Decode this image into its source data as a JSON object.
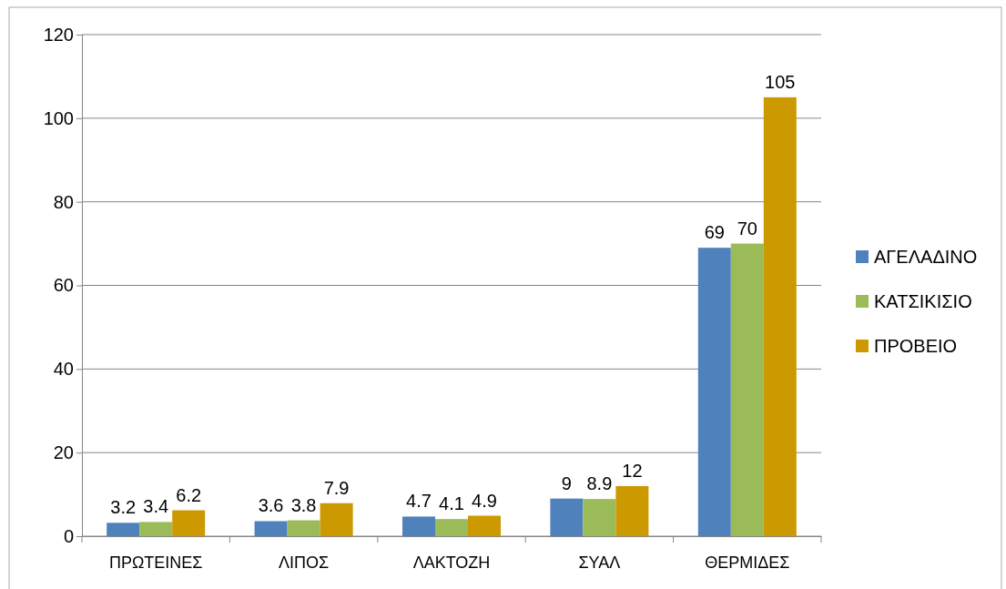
{
  "chart_data": {
    "type": "bar",
    "categories": [
      "ΠΡΩΤΕΙΝΕΣ",
      "ΛΙΠΟΣ",
      "ΛΑΚΤΟΖΗ",
      "ΣΥΑΛ",
      "ΘΕΡΜΙΔΕΣ"
    ],
    "series": [
      {
        "name": "ΑΓΕΛΑΔΙΝΟ",
        "color": "#4f81bd",
        "values": [
          3.2,
          3.6,
          4.7,
          9,
          69
        ]
      },
      {
        "name": "ΚΑΤΣΙΚΙΣΙΟ",
        "color": "#9bbb59",
        "values": [
          3.4,
          3.8,
          4.1,
          8.9,
          70
        ]
      },
      {
        "name": "ΠΡΟΒΕΙΟ",
        "color": "#cc9900",
        "values": [
          6.2,
          7.9,
          4.9,
          12,
          105
        ]
      }
    ],
    "ylim": [
      0,
      120
    ],
    "yticks": [
      0,
      20,
      40,
      60,
      80,
      100,
      120
    ],
    "grid": "y",
    "legend": "right",
    "data_labels": true
  }
}
